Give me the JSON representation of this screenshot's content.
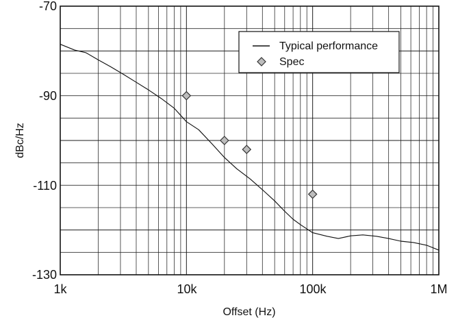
{
  "chart_data": {
    "type": "line",
    "xscale": "log",
    "xlim": [
      1000,
      1000000
    ],
    "ylim": [
      -130,
      -70
    ],
    "xlabel": "Offset (Hz)",
    "ylabel": "dBc/Hz",
    "x_ticks": [
      1000,
      10000,
      100000,
      1000000
    ],
    "x_tick_labels": [
      "1k",
      "10k",
      "100k",
      "1M"
    ],
    "y_ticks": [
      -70,
      -90,
      -110,
      -130
    ],
    "y_tick_labels": [
      "-70",
      "-90",
      "-110",
      "-130"
    ],
    "legend": {
      "placement": "top-right",
      "entries": [
        "Typical performance",
        "Spec"
      ]
    },
    "grid": true,
    "colors": {
      "line": "#111111",
      "spec_fill": "#bdbdbd",
      "spec_stroke": "#333333"
    },
    "series": [
      {
        "name": "Typical performance",
        "style": "line",
        "points": [
          {
            "x": 1000,
            "y": -78.5
          },
          {
            "x": 1300,
            "y": -79.8
          },
          {
            "x": 1600,
            "y": -80.4
          },
          {
            "x": 2000,
            "y": -82.0
          },
          {
            "x": 2500,
            "y": -83.5
          },
          {
            "x": 3200,
            "y": -85.3
          },
          {
            "x": 4000,
            "y": -87.0
          },
          {
            "x": 5000,
            "y": -88.7
          },
          {
            "x": 6300,
            "y": -90.6
          },
          {
            "x": 8000,
            "y": -92.8
          },
          {
            "x": 10000,
            "y": -95.8
          },
          {
            "x": 12500,
            "y": -97.6
          },
          {
            "x": 16000,
            "y": -100.8
          },
          {
            "x": 20000,
            "y": -103.8
          },
          {
            "x": 25000,
            "y": -106.3
          },
          {
            "x": 32000,
            "y": -108.6
          },
          {
            "x": 40000,
            "y": -111.0
          },
          {
            "x": 50000,
            "y": -113.5
          },
          {
            "x": 60000,
            "y": -115.8
          },
          {
            "x": 70000,
            "y": -117.6
          },
          {
            "x": 80000,
            "y": -118.8
          },
          {
            "x": 100000,
            "y": -120.6
          },
          {
            "x": 130000,
            "y": -121.4
          },
          {
            "x": 160000,
            "y": -121.9
          },
          {
            "x": 200000,
            "y": -121.3
          },
          {
            "x": 250000,
            "y": -121.1
          },
          {
            "x": 320000,
            "y": -121.4
          },
          {
            "x": 400000,
            "y": -121.9
          },
          {
            "x": 500000,
            "y": -122.5
          },
          {
            "x": 630000,
            "y": -122.8
          },
          {
            "x": 800000,
            "y": -123.4
          },
          {
            "x": 1000000,
            "y": -124.5
          }
        ]
      },
      {
        "name": "Spec",
        "style": "diamond",
        "points": [
          {
            "x": 10000,
            "y": -90
          },
          {
            "x": 20000,
            "y": -100
          },
          {
            "x": 30000,
            "y": -102
          },
          {
            "x": 100000,
            "y": -112
          }
        ]
      }
    ]
  }
}
